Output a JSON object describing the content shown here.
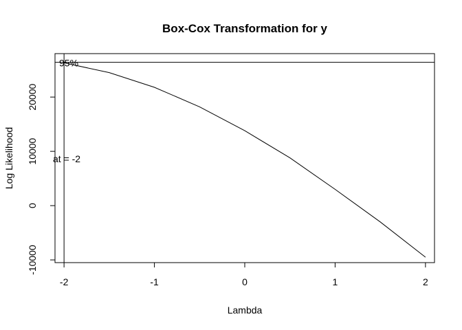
{
  "chart_data": {
    "type": "line",
    "title": "Box-Cox Transformation for y",
    "xlabel": "Lambda",
    "ylabel": "Log Likelihood",
    "xlim": [
      -2.1,
      2.1
    ],
    "ylim": [
      -10500,
      28000
    ],
    "x_ticks": [
      -2,
      -1,
      0,
      1,
      2
    ],
    "x_tick_labels": [
      "-2",
      "-1",
      "0",
      "1",
      "2"
    ],
    "y_ticks": [
      -10000,
      0,
      10000,
      20000
    ],
    "y_tick_labels": [
      "-10000",
      "0",
      "10000",
      "20000"
    ],
    "grid": false,
    "legend": "none",
    "series": [
      {
        "x": [
          -2.0,
          -1.5,
          -1.0,
          -0.5,
          0.0,
          0.5,
          1.0,
          1.5,
          2.0
        ],
        "y": [
          26300,
          24500,
          21800,
          18200,
          13800,
          8800,
          3000,
          -3000,
          -9500
        ]
      }
    ],
    "annotations": {
      "ci_label": "95%",
      "ci_level": 26400,
      "lambda_line_x": -2,
      "lambda_label": "at = -2"
    }
  }
}
